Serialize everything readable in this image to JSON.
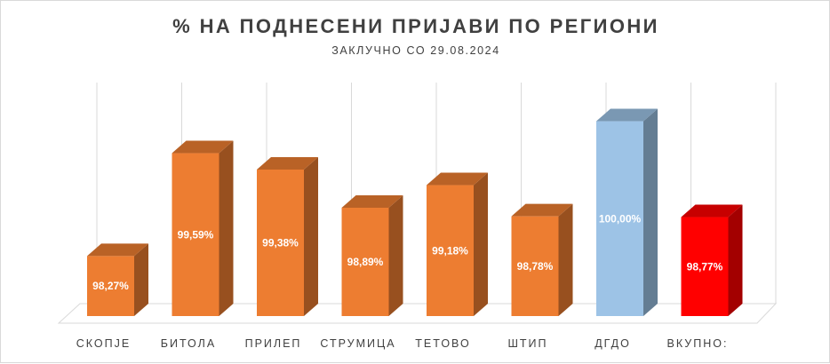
{
  "chart_data": {
    "type": "bar",
    "title": "% НА ПОДНЕСЕНИ ПРИЈАВИ ПО РЕГИОНИ",
    "subtitle": "ЗАКЛУЧНО СО 29.08.2024",
    "categories": [
      "СКОПЈЕ",
      "БИТОЛА",
      "ПРИЛЕП",
      "СТРУМИЦА",
      "ТЕТОВО",
      "ШТИП",
      "ДГДО",
      "ВКУПНО:"
    ],
    "values": [
      98.27,
      99.59,
      99.38,
      98.89,
      99.18,
      98.78,
      100.0,
      98.77
    ],
    "data_labels": [
      "98,27%",
      "99,59%",
      "99,38%",
      "98,89%",
      "99,18%",
      "98,78%",
      "100,00%",
      "98,77%"
    ],
    "bar_colors": [
      "#ed7d31",
      "#ed7d31",
      "#ed7d31",
      "#ed7d31",
      "#ed7d31",
      "#ed7d31",
      "#9dc3e6",
      "#ff0000"
    ],
    "ylim": [
      97.5,
      100.2
    ],
    "grid": true,
    "style": "3d-column"
  }
}
